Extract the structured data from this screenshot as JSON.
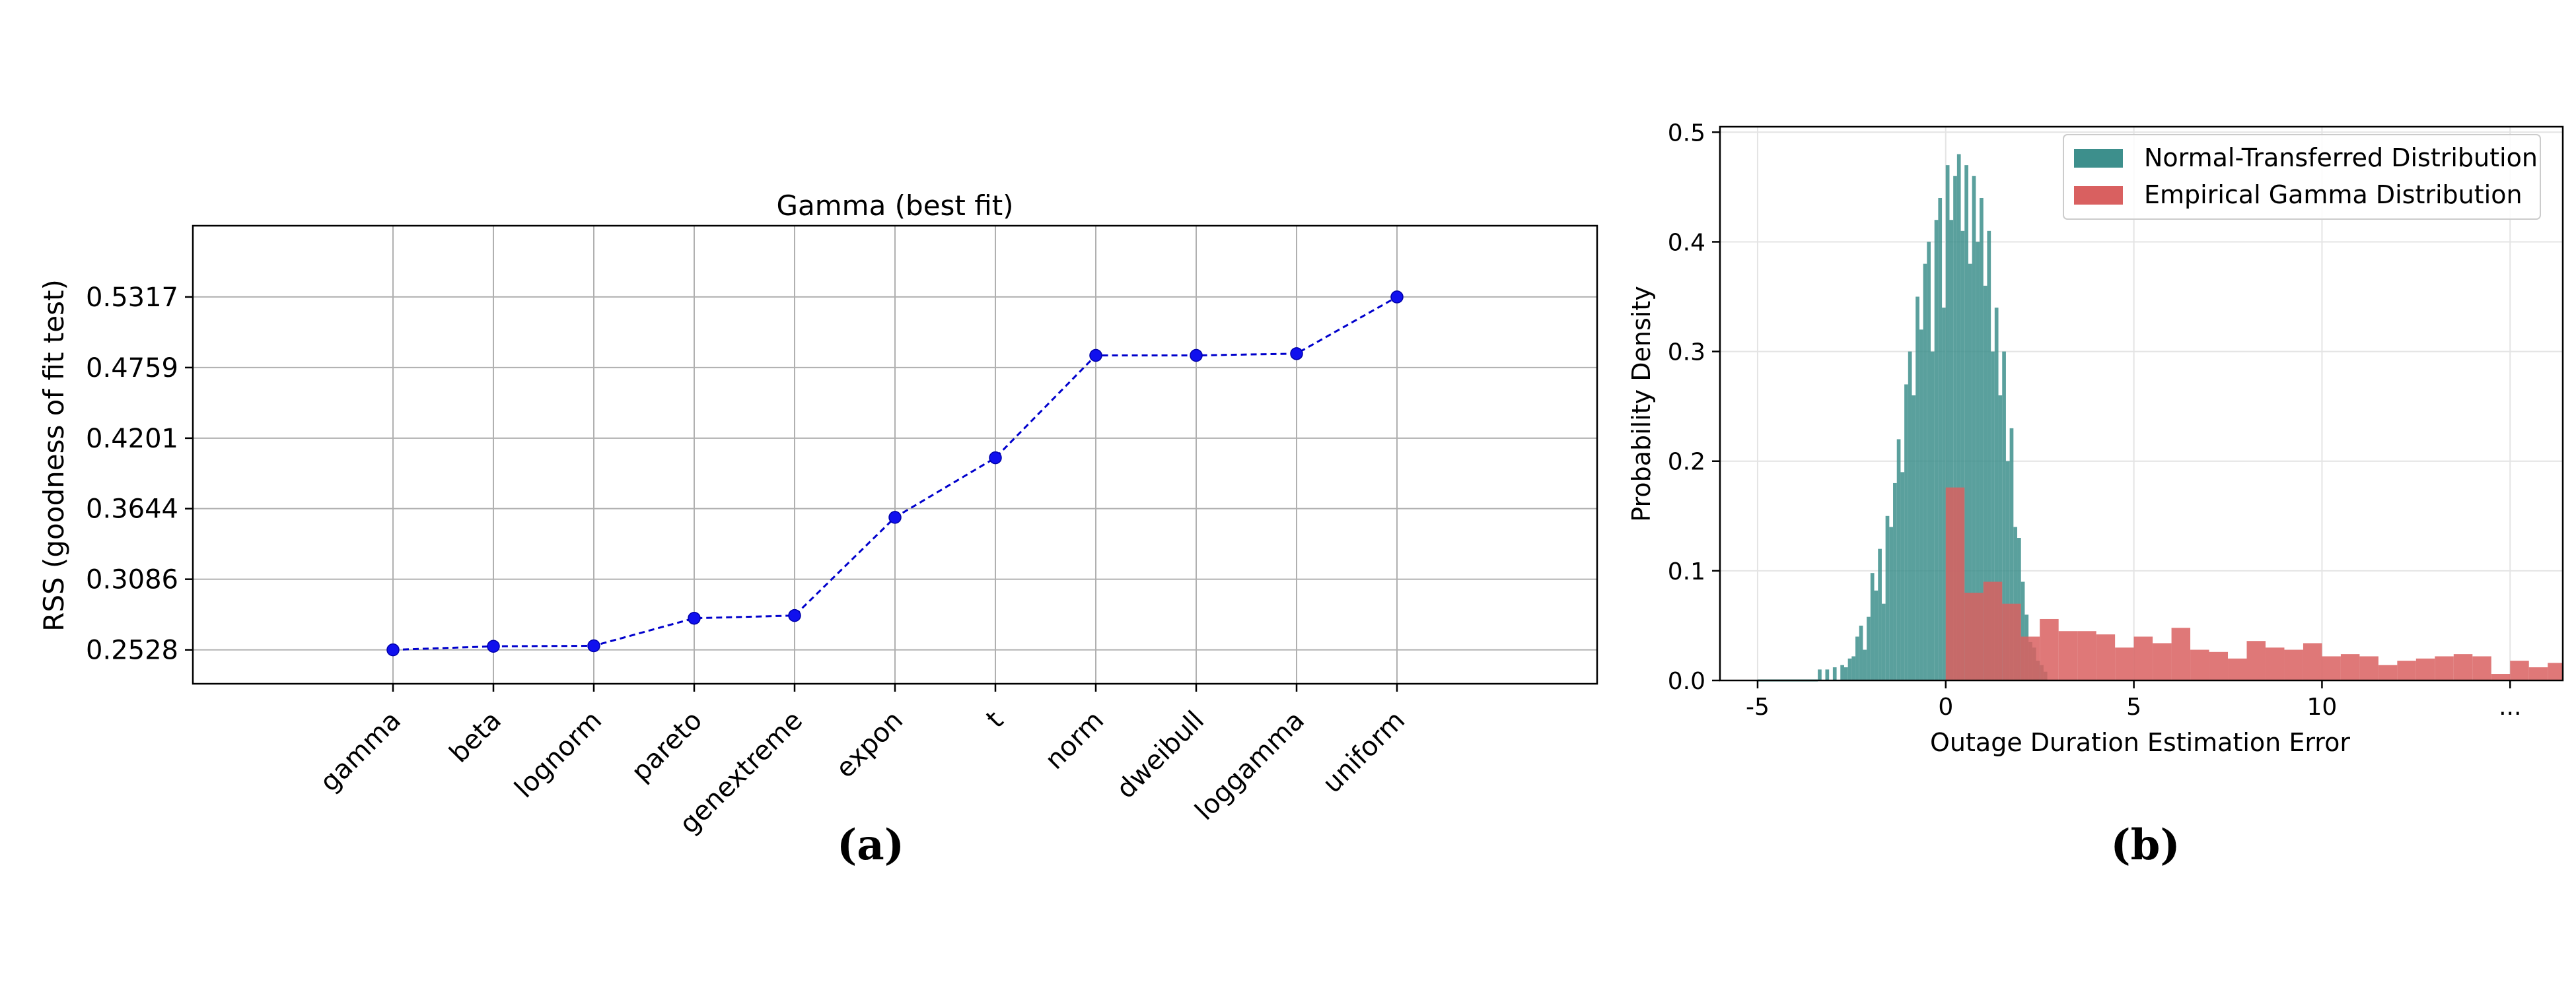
{
  "chart_data": [
    {
      "type": "line",
      "title": "Gamma (best fit)",
      "ylabel": "RSS (goodness of fit test)",
      "xlabel": "",
      "panel_label": "(a)",
      "categories": [
        "gamma",
        "beta",
        "lognorm",
        "pareto",
        "genextreme",
        "expon",
        "t",
        "norm",
        "dweibull",
        "loggamma",
        "uniform"
      ],
      "values": [
        0.2528,
        0.2556,
        0.256,
        0.2778,
        0.2799,
        0.3575,
        0.4046,
        0.4855,
        0.4855,
        0.4869,
        0.5317
      ],
      "yticks": [
        "0.2528",
        "0.3086",
        "0.3644",
        "0.4201",
        "0.4759",
        "0.5317"
      ],
      "ytick_values": [
        0.2528,
        0.3086,
        0.3644,
        0.4201,
        0.4759,
        0.5317
      ],
      "ylim": [
        0.226,
        0.588
      ],
      "grid": true,
      "line_color": "#0000cc",
      "marker_color": "#1010ee",
      "line_style": "dashed"
    },
    {
      "type": "histogram",
      "xlabel": "Outage Duration Estimation Error",
      "ylabel": "Probability Density",
      "panel_label": "(b)",
      "xlim": [
        -6.0,
        16.4
      ],
      "ylim": [
        0,
        0.505
      ],
      "xticks": [
        -5,
        0,
        5,
        10
      ],
      "xtick_labels": [
        "-5",
        "0",
        "5",
        "10"
      ],
      "xtick_extra": {
        "x": 15,
        "label": "..."
      },
      "yticks": [
        0.0,
        0.1,
        0.2,
        0.3,
        0.4,
        0.5
      ],
      "ytick_labels": [
        "0.0",
        "0.1",
        "0.2",
        "0.3",
        "0.4",
        "0.5"
      ],
      "grid": true,
      "legend_position": "top-right",
      "series": [
        {
          "name": "Normal-Transferred Distribution",
          "color": "#3d8f8c",
          "opacity": 0.85,
          "bin_start": -3.4,
          "bin_width": 0.1,
          "values": [
            0.01,
            0.0,
            0.01,
            0.0,
            0.012,
            0.0,
            0.014,
            0.012,
            0.02,
            0.022,
            0.04,
            0.05,
            0.028,
            0.058,
            0.098,
            0.082,
            0.12,
            0.07,
            0.15,
            0.14,
            0.18,
            0.22,
            0.19,
            0.27,
            0.3,
            0.26,
            0.35,
            0.32,
            0.38,
            0.4,
            0.3,
            0.42,
            0.44,
            0.34,
            0.47,
            0.42,
            0.46,
            0.48,
            0.41,
            0.47,
            0.38,
            0.46,
            0.4,
            0.44,
            0.36,
            0.41,
            0.3,
            0.34,
            0.26,
            0.3,
            0.2,
            0.23,
            0.14,
            0.13,
            0.09,
            0.06,
            0.035,
            0.03,
            0.018,
            0.014,
            0.008
          ]
        },
        {
          "name": "Empirical Gamma Distribution",
          "color": "#d96060",
          "opacity": 0.85,
          "bin_start": 0.0,
          "bin_width": 0.5,
          "values": [
            0.176,
            0.08,
            0.09,
            0.07,
            0.04,
            0.056,
            0.045,
            0.045,
            0.042,
            0.03,
            0.04,
            0.034,
            0.048,
            0.028,
            0.026,
            0.02,
            0.036,
            0.03,
            0.028,
            0.034,
            0.022,
            0.024,
            0.022,
            0.014,
            0.018,
            0.02,
            0.022,
            0.024,
            0.022,
            0.006,
            0.018,
            0.012,
            0.016
          ]
        }
      ]
    }
  ]
}
